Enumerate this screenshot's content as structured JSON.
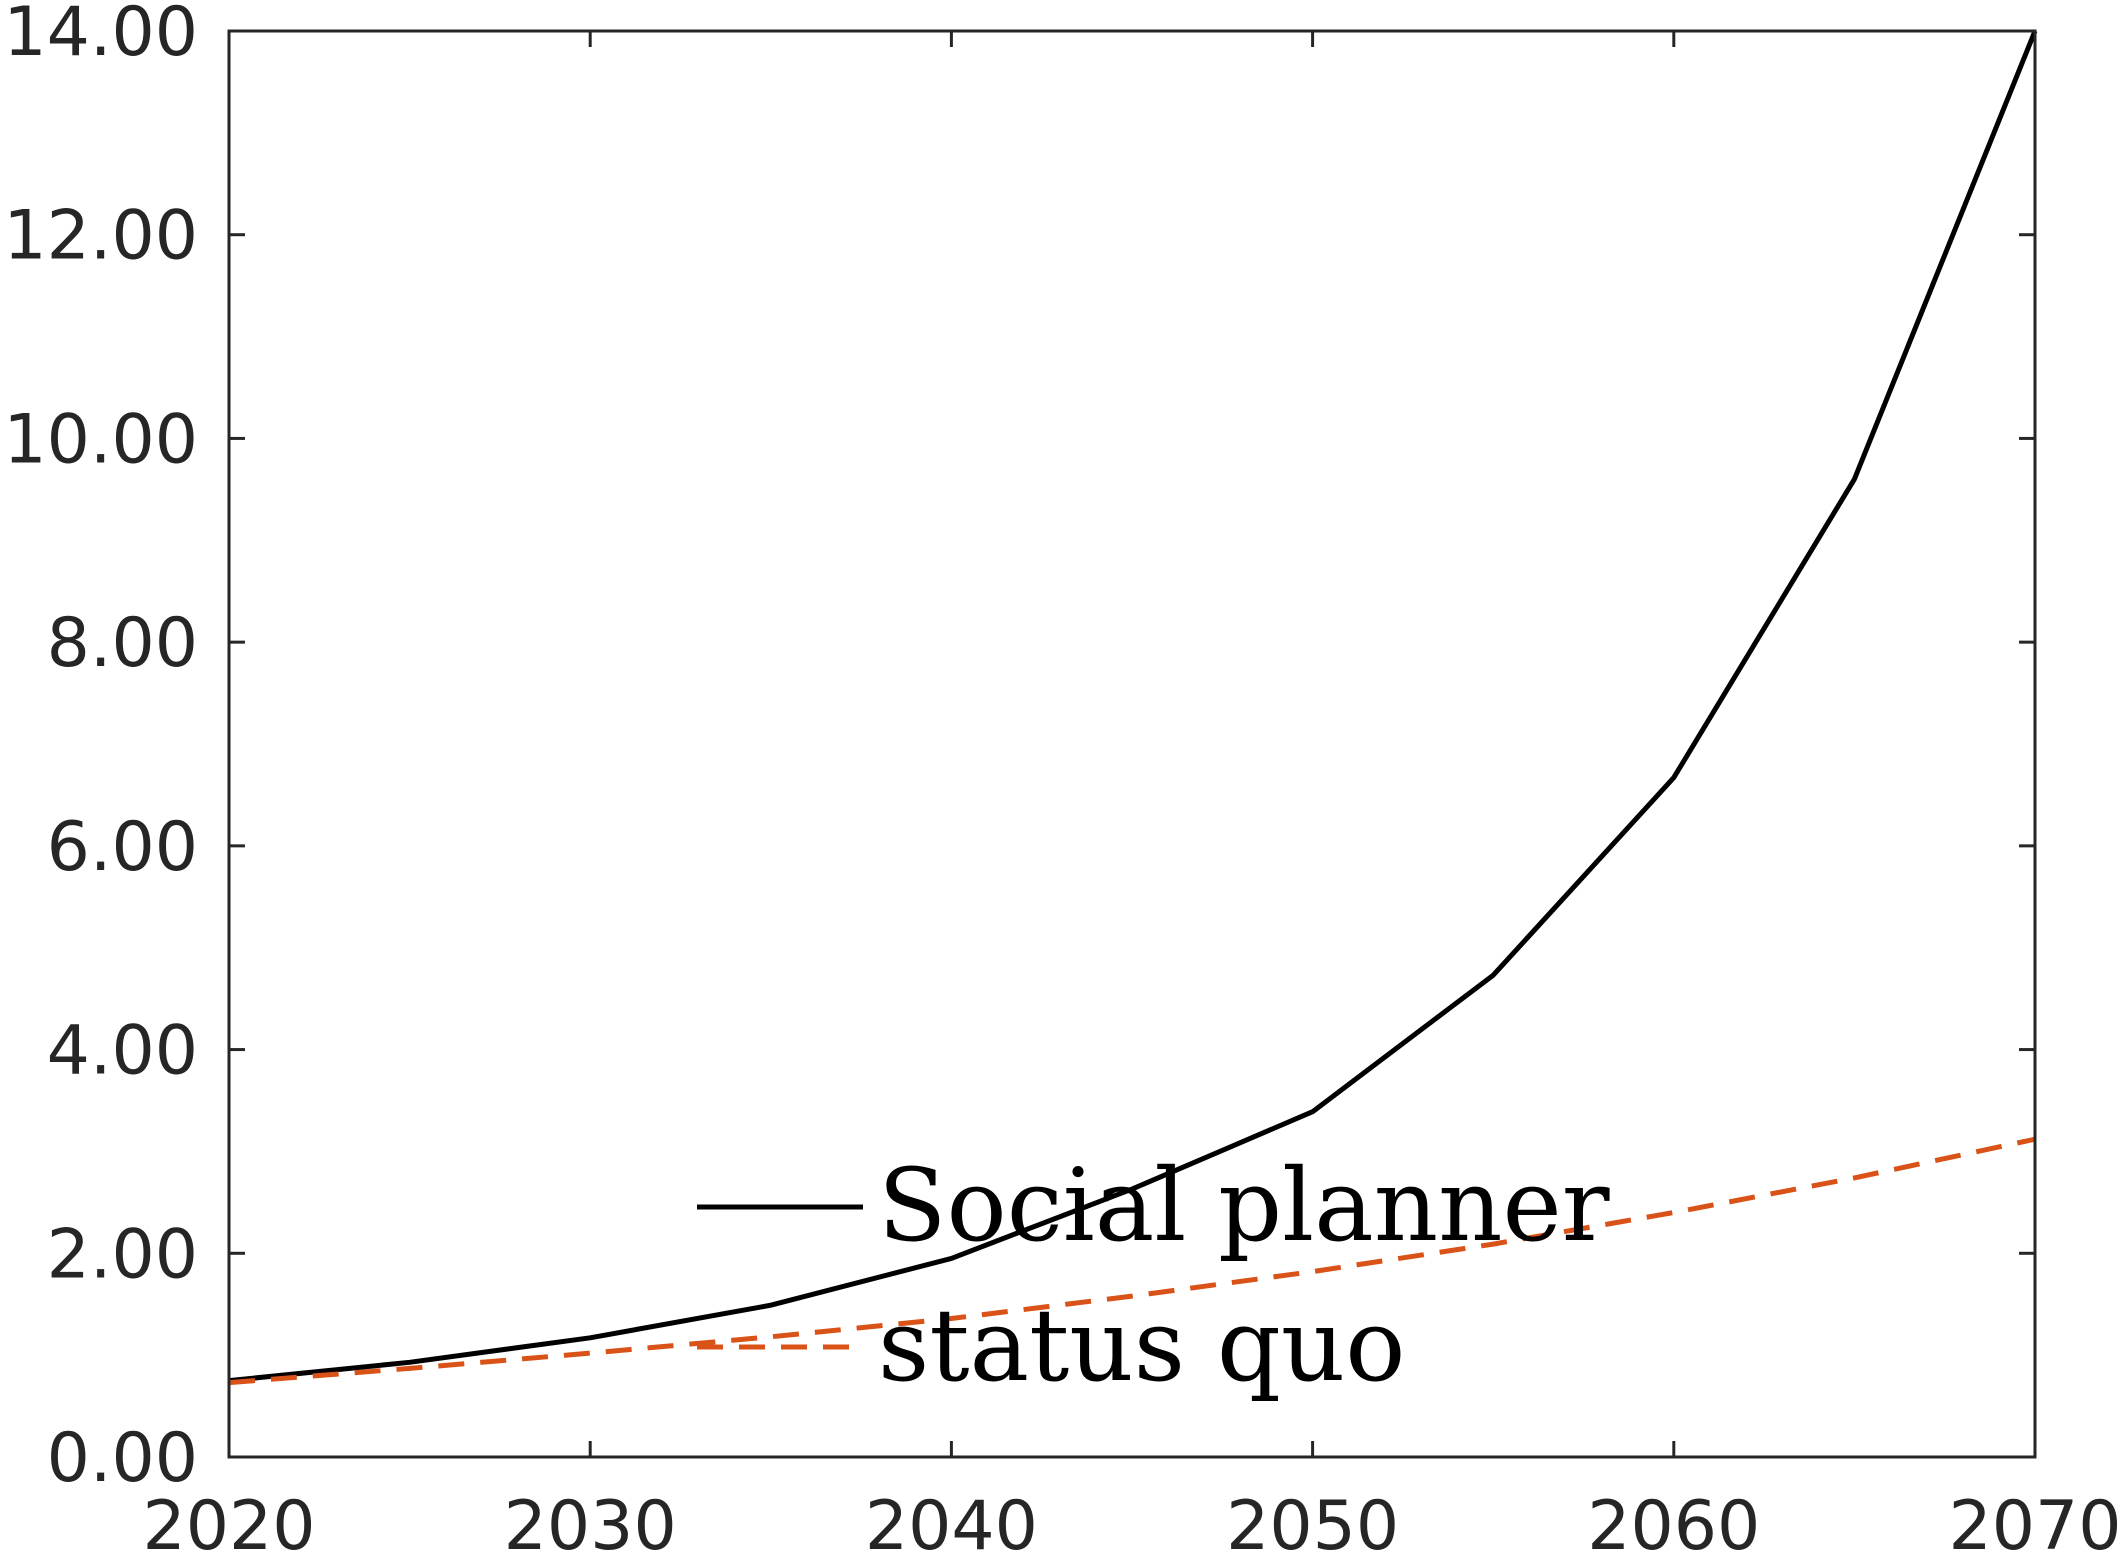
{
  "chart_data": {
    "type": "line",
    "title": "",
    "xlabel": "",
    "ylabel": "",
    "xlim": [
      2020,
      2070
    ],
    "ylim": [
      0,
      14
    ],
    "x_ticks": [
      2020,
      2030,
      2040,
      2050,
      2060,
      2070
    ],
    "x_tick_labels": [
      "2020",
      "2030",
      "2040",
      "2050",
      "2060",
      "2070"
    ],
    "y_ticks": [
      0,
      2,
      4,
      6,
      8,
      10,
      12,
      14
    ],
    "y_tick_labels": [
      "0.00",
      "2.00",
      "4.00",
      "6.00",
      "8.00",
      "10.00",
      "12.00",
      "14.00"
    ],
    "grid": false,
    "legend_placement": "bottom-center",
    "x": [
      2020,
      2025,
      2030,
      2035,
      2040,
      2045,
      2050,
      2055,
      2060,
      2065,
      2070
    ],
    "series": [
      {
        "name": "Social planner",
        "color": "#000000",
        "line_style": "solid",
        "values": [
          0.75,
          0.93,
          1.17,
          1.49,
          1.95,
          2.63,
          3.39,
          4.73,
          6.67,
          9.6,
          14.0
        ]
      },
      {
        "name": "status quo",
        "color": "#d95319",
        "line_style": "dashed",
        "values": [
          0.73,
          0.87,
          1.02,
          1.18,
          1.36,
          1.58,
          1.82,
          2.09,
          2.4,
          2.74,
          3.12
        ]
      }
    ]
  }
}
